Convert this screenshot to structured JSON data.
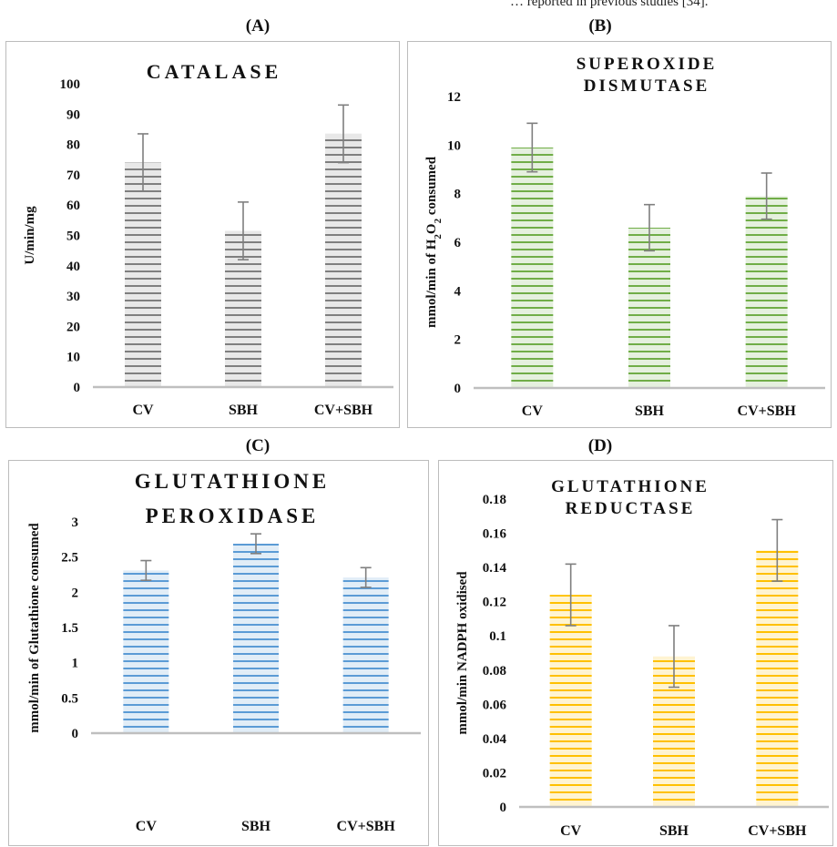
{
  "top_text": "… reported in previous studies [34].",
  "panels": [
    {
      "label": "(A)"
    },
    {
      "label": "(B)"
    },
    {
      "label": "(C)"
    },
    {
      "label": "(D)"
    }
  ],
  "colors": {
    "catalase": "#7f7f7f",
    "sod": "#70ad47",
    "gpx": "#5b9bd5",
    "gr": "#ffc000",
    "axis": "#bfbfbf",
    "error_bar": "#7f7f7f"
  },
  "chart_data": [
    {
      "type": "bar",
      "title": "CATALASE",
      "title_lines": [
        "CATALASE"
      ],
      "ylabel": "U/min/mg",
      "categories": [
        "CV",
        "SBH",
        "CV+SBH"
      ],
      "values": [
        74,
        51.5,
        83.5
      ],
      "errors": [
        9.5,
        9.5,
        9.5
      ],
      "ylim": [
        0,
        100
      ],
      "yticks": [
        "0",
        "10",
        "20",
        "30",
        "40",
        "50",
        "60",
        "70",
        "80",
        "90",
        "100"
      ],
      "pattern": "horizontal-stripes",
      "grid": false
    },
    {
      "type": "bar",
      "title": "SUPEROXIDE DISMUTASE",
      "title_lines": [
        "SUPEROXIDE",
        "DISMUTASE"
      ],
      "ylabel_parts": [
        "mmol/min of H",
        "2",
        "O",
        "2",
        " consumed"
      ],
      "categories": [
        "CV",
        "SBH",
        "CV+SBH"
      ],
      "values": [
        9.9,
        6.6,
        7.9
      ],
      "errors": [
        1.0,
        0.95,
        0.95
      ],
      "ylim": [
        0,
        12
      ],
      "yticks": [
        "0",
        "2",
        "4",
        "6",
        "8",
        "10",
        "12"
      ],
      "pattern": "horizontal-stripes",
      "grid": false
    },
    {
      "type": "bar",
      "title": "GLUTATHIONE PEROXIDASE",
      "title_lines": [
        "GLUTATHIONE",
        "PEROXIDASE"
      ],
      "ylabel": "mmol/min of Glutathione consumed",
      "categories": [
        "CV",
        "SBH",
        "CV+SBH"
      ],
      "values": [
        2.31,
        2.69,
        2.21
      ],
      "errors": [
        0.14,
        0.14,
        0.14
      ],
      "ylim": [
        0,
        3
      ],
      "yticks": [
        "0",
        "0.5",
        "1",
        "1.5",
        "2",
        "2.5",
        "3"
      ],
      "pattern": "horizontal-stripes",
      "grid": false
    },
    {
      "type": "bar",
      "title": "GLUTATHIONE REDUCTASE",
      "title_lines": [
        "GLUTATHIONE",
        "REDUCTASE"
      ],
      "ylabel": "mmol/min NADPH oxidised",
      "categories": [
        "CV",
        "SBH",
        "CV+SBH"
      ],
      "values": [
        0.124,
        0.088,
        0.15
      ],
      "errors": [
        0.018,
        0.018,
        0.018
      ],
      "ylim": [
        0,
        0.18
      ],
      "yticks": [
        "0",
        "0.02",
        "0.04",
        "0.06",
        "0.08",
        "0.1",
        "0.12",
        "0.14",
        "0.16",
        "0.18"
      ],
      "pattern": "horizontal-stripes",
      "grid": false
    }
  ]
}
